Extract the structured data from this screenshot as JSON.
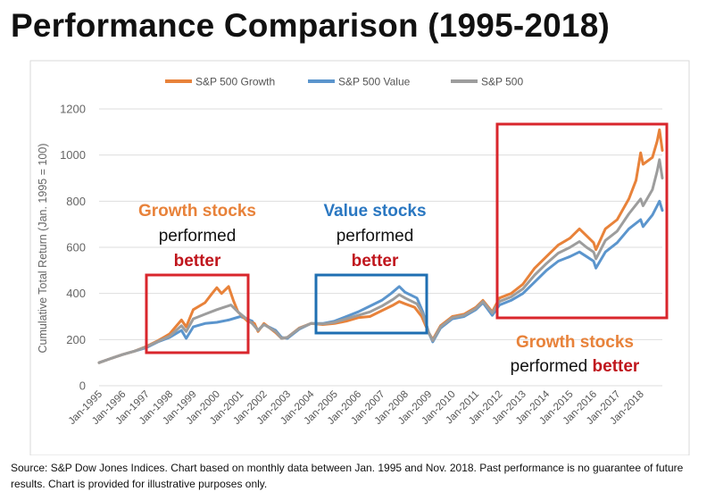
{
  "title": "Performance Comparison (1995-2018)",
  "source_note": "Source: S&P Dow Jones Indices.  Chart based on monthly data between Jan. 1995 and Nov. 2018.  Past performance is no guarantee of future results.  Chart is provided for illustrative purposes only.",
  "colors": {
    "growth": "#e8823a",
    "value": "#5b95cd",
    "sp500": "#9d9d9d",
    "red_box": "#d9262c",
    "blue_box": "#1f6fb2",
    "growth_text": "#e8823a",
    "value_text": "#2a77c1",
    "better_text": "#c0161d"
  },
  "chart_data": {
    "type": "line",
    "title": "",
    "xlabel": "",
    "ylabel": "Cumulative Total Return (Jan. 1995 = 100)",
    "ylim": [
      0,
      1200
    ],
    "yticks": [
      0,
      200,
      400,
      600,
      800,
      1000,
      1200
    ],
    "xticks": [
      "Jan-1995",
      "Jan-1996",
      "Jan-1997",
      "Jan-1998",
      "Jan-1999",
      "Jan-2000",
      "Jan-2001",
      "Jan-2002",
      "Jan-2003",
      "Jan-2004",
      "Jan-2005",
      "Jan-2006",
      "Jan-2007",
      "Jan-2008",
      "Jan-2009",
      "Jan-2010",
      "Jan-2011",
      "Jan-2012",
      "Jan-2013",
      "Jan-2014",
      "Jan-2015",
      "Jan-2016",
      "Jan-2017",
      "Jan-2018"
    ],
    "xlim": [
      1995.0,
      2018.92
    ],
    "grid": "horizontal",
    "legend": "top-center",
    "series": [
      {
        "name": "S&P 500 Growth",
        "x": [
          1995.0,
          1995.5,
          1996.0,
          1996.5,
          1997.0,
          1997.5,
          1997.75,
          1998.0,
          1998.5,
          1998.7,
          1999.0,
          1999.5,
          1999.8,
          2000.0,
          2000.2,
          2000.5,
          2000.7,
          2000.9,
          2001.1,
          2001.3,
          2001.6,
          2001.75,
          2002.0,
          2002.5,
          2002.75,
          2003.0,
          2003.5,
          2004.0,
          2004.5,
          2005.0,
          2005.5,
          2006.0,
          2006.5,
          2007.0,
          2007.5,
          2007.75,
          2008.0,
          2008.4,
          2008.7,
          2009.0,
          2009.17,
          2009.5,
          2010.0,
          2010.5,
          2011.0,
          2011.3,
          2011.7,
          2012.0,
          2012.5,
          2013.0,
          2013.5,
          2014.0,
          2014.5,
          2015.0,
          2015.4,
          2015.7,
          2016.0,
          2016.1,
          2016.5,
          2017.0,
          2017.5,
          2017.8,
          2018.0,
          2018.1,
          2018.5,
          2018.7,
          2018.8,
          2018.92
        ],
        "values": [
          100,
          118,
          135,
          150,
          170,
          195,
          210,
          225,
          285,
          255,
          330,
          360,
          400,
          425,
          400,
          430,
          370,
          320,
          300,
          280,
          270,
          235,
          270,
          230,
          205,
          210,
          250,
          270,
          265,
          270,
          280,
          295,
          300,
          325,
          350,
          365,
          355,
          340,
          300,
          230,
          200,
          260,
          300,
          310,
          340,
          370,
          320,
          380,
          400,
          440,
          510,
          560,
          610,
          640,
          680,
          650,
          620,
          590,
          680,
          720,
          810,
          890,
          1010,
          960,
          990,
          1060,
          1110,
          1020
        ]
      },
      {
        "name": "S&P 500 Value",
        "x": [
          1995.0,
          1995.5,
          1996.0,
          1996.5,
          1997.0,
          1997.5,
          1998.0,
          1998.5,
          1998.7,
          1999.0,
          1999.5,
          2000.0,
          2000.5,
          2001.0,
          2001.5,
          2001.75,
          2002.0,
          2002.5,
          2002.75,
          2003.0,
          2003.5,
          2004.0,
          2004.5,
          2005.0,
          2005.5,
          2006.0,
          2006.5,
          2007.0,
          2007.4,
          2007.75,
          2008.0,
          2008.5,
          2008.75,
          2009.0,
          2009.17,
          2009.5,
          2010.0,
          2010.5,
          2011.0,
          2011.3,
          2011.7,
          2012.0,
          2012.5,
          2013.0,
          2013.5,
          2014.0,
          2014.5,
          2015.0,
          2015.4,
          2015.7,
          2016.0,
          2016.1,
          2016.5,
          2017.0,
          2017.5,
          2018.0,
          2018.1,
          2018.5,
          2018.7,
          2018.8,
          2018.92
        ],
        "values": [
          100,
          118,
          135,
          150,
          165,
          190,
          210,
          240,
          205,
          255,
          270,
          275,
          285,
          300,
          280,
          240,
          265,
          240,
          210,
          205,
          245,
          270,
          270,
          280,
          300,
          320,
          345,
          370,
          400,
          430,
          405,
          380,
          320,
          230,
          190,
          250,
          290,
          300,
          330,
          360,
          305,
          350,
          370,
          400,
          450,
          500,
          540,
          560,
          580,
          560,
          540,
          510,
          580,
          620,
          680,
          720,
          690,
          740,
          780,
          800,
          760
        ]
      },
      {
        "name": "S&P 500",
        "x": [
          1995.0,
          1995.5,
          1996.0,
          1996.5,
          1997.0,
          1997.5,
          1998.0,
          1998.5,
          1998.7,
          1999.0,
          1999.5,
          2000.0,
          2000.3,
          2000.6,
          2000.9,
          2001.2,
          2001.5,
          2001.75,
          2002.0,
          2002.5,
          2002.75,
          2003.0,
          2003.5,
          2004.0,
          2004.5,
          2005.0,
          2005.5,
          2006.0,
          2006.5,
          2007.0,
          2007.5,
          2007.75,
          2008.0,
          2008.5,
          2008.75,
          2009.0,
          2009.17,
          2009.5,
          2010.0,
          2010.5,
          2011.0,
          2011.3,
          2011.7,
          2012.0,
          2012.5,
          2013.0,
          2013.5,
          2014.0,
          2014.5,
          2015.0,
          2015.4,
          2015.7,
          2016.0,
          2016.1,
          2016.5,
          2017.0,
          2017.5,
          2018.0,
          2018.1,
          2018.5,
          2018.7,
          2018.8,
          2018.92
        ],
        "values": [
          100,
          118,
          135,
          150,
          168,
          192,
          215,
          260,
          235,
          290,
          310,
          330,
          340,
          350,
          320,
          295,
          270,
          240,
          265,
          235,
          205,
          210,
          248,
          270,
          268,
          275,
          290,
          305,
          320,
          345,
          375,
          395,
          380,
          355,
          310,
          230,
          195,
          255,
          295,
          305,
          335,
          365,
          315,
          365,
          385,
          420,
          480,
          530,
          575,
          600,
          625,
          600,
          580,
          550,
          630,
          670,
          745,
          810,
          780,
          850,
          930,
          980,
          900
        ]
      }
    ]
  },
  "annotations": {
    "left": {
      "line1": "Growth stocks",
      "line2": "performed",
      "line3": "better"
    },
    "middle": {
      "line1": "Value stocks",
      "line2": "performed",
      "line3": "better"
    },
    "right": {
      "line1": "Growth stocks",
      "line2_a": "performed ",
      "line2_b": "better"
    }
  }
}
